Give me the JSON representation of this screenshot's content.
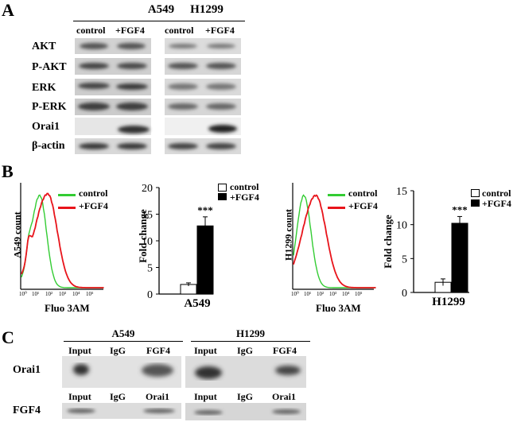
{
  "panels": {
    "a": "A",
    "b": "B",
    "c": "C"
  },
  "panel_a": {
    "cell_lines": [
      "A549",
      "H1299"
    ],
    "conditions": [
      "control",
      "+FGF4"
    ],
    "rows": [
      "AKT",
      "P-AKT",
      "ERK",
      "P-ERK",
      "Orai1",
      "β-actin"
    ]
  },
  "panel_b": {
    "hist_legend": [
      "control",
      "+FGF4"
    ],
    "hist_colors": {
      "control": "#33cc33",
      "fgf4": "#e8141b"
    },
    "hist_xticks": [
      "10⁰",
      "10¹",
      "10²",
      "10³",
      "10⁴",
      "10⁵"
    ],
    "hist_xlabel": "Fluo 3AM",
    "a549_ylabel": "A549 count",
    "h1299_ylabel": "H1299 count",
    "bar_legend": [
      "control",
      "+FGF4"
    ],
    "bar_ylabel": "Fold change",
    "bar_sig": "***"
  },
  "panel_c": {
    "cell_lines": [
      "A549",
      "H1299"
    ],
    "ip_row_label": "Orai1",
    "ip_lanes": [
      "Input",
      "IgG",
      "FGF4"
    ],
    "blot_row_label": "FGF4",
    "blot_lanes": [
      "Input",
      "IgG",
      "Orai1"
    ]
  },
  "chart_data": [
    {
      "type": "bar",
      "title": "A549",
      "categories": [
        "control",
        "+FGF4"
      ],
      "values": [
        1.8,
        12.8
      ],
      "errors": [
        0.3,
        1.7
      ],
      "ylabel": "Fold change",
      "ylim": [
        0,
        20
      ],
      "yticks": [
        "0",
        "5",
        "10",
        "15",
        "20"
      ],
      "annotation": "***"
    },
    {
      "type": "bar",
      "title": "H1299",
      "categories": [
        "control",
        "+FGF4"
      ],
      "values": [
        1.5,
        10.2
      ],
      "errors": [
        0.5,
        1.0
      ],
      "ylabel": "Fold change",
      "ylim": [
        0,
        15
      ],
      "yticks": [
        "0",
        "5",
        "10",
        "15"
      ],
      "annotation": "***"
    }
  ]
}
